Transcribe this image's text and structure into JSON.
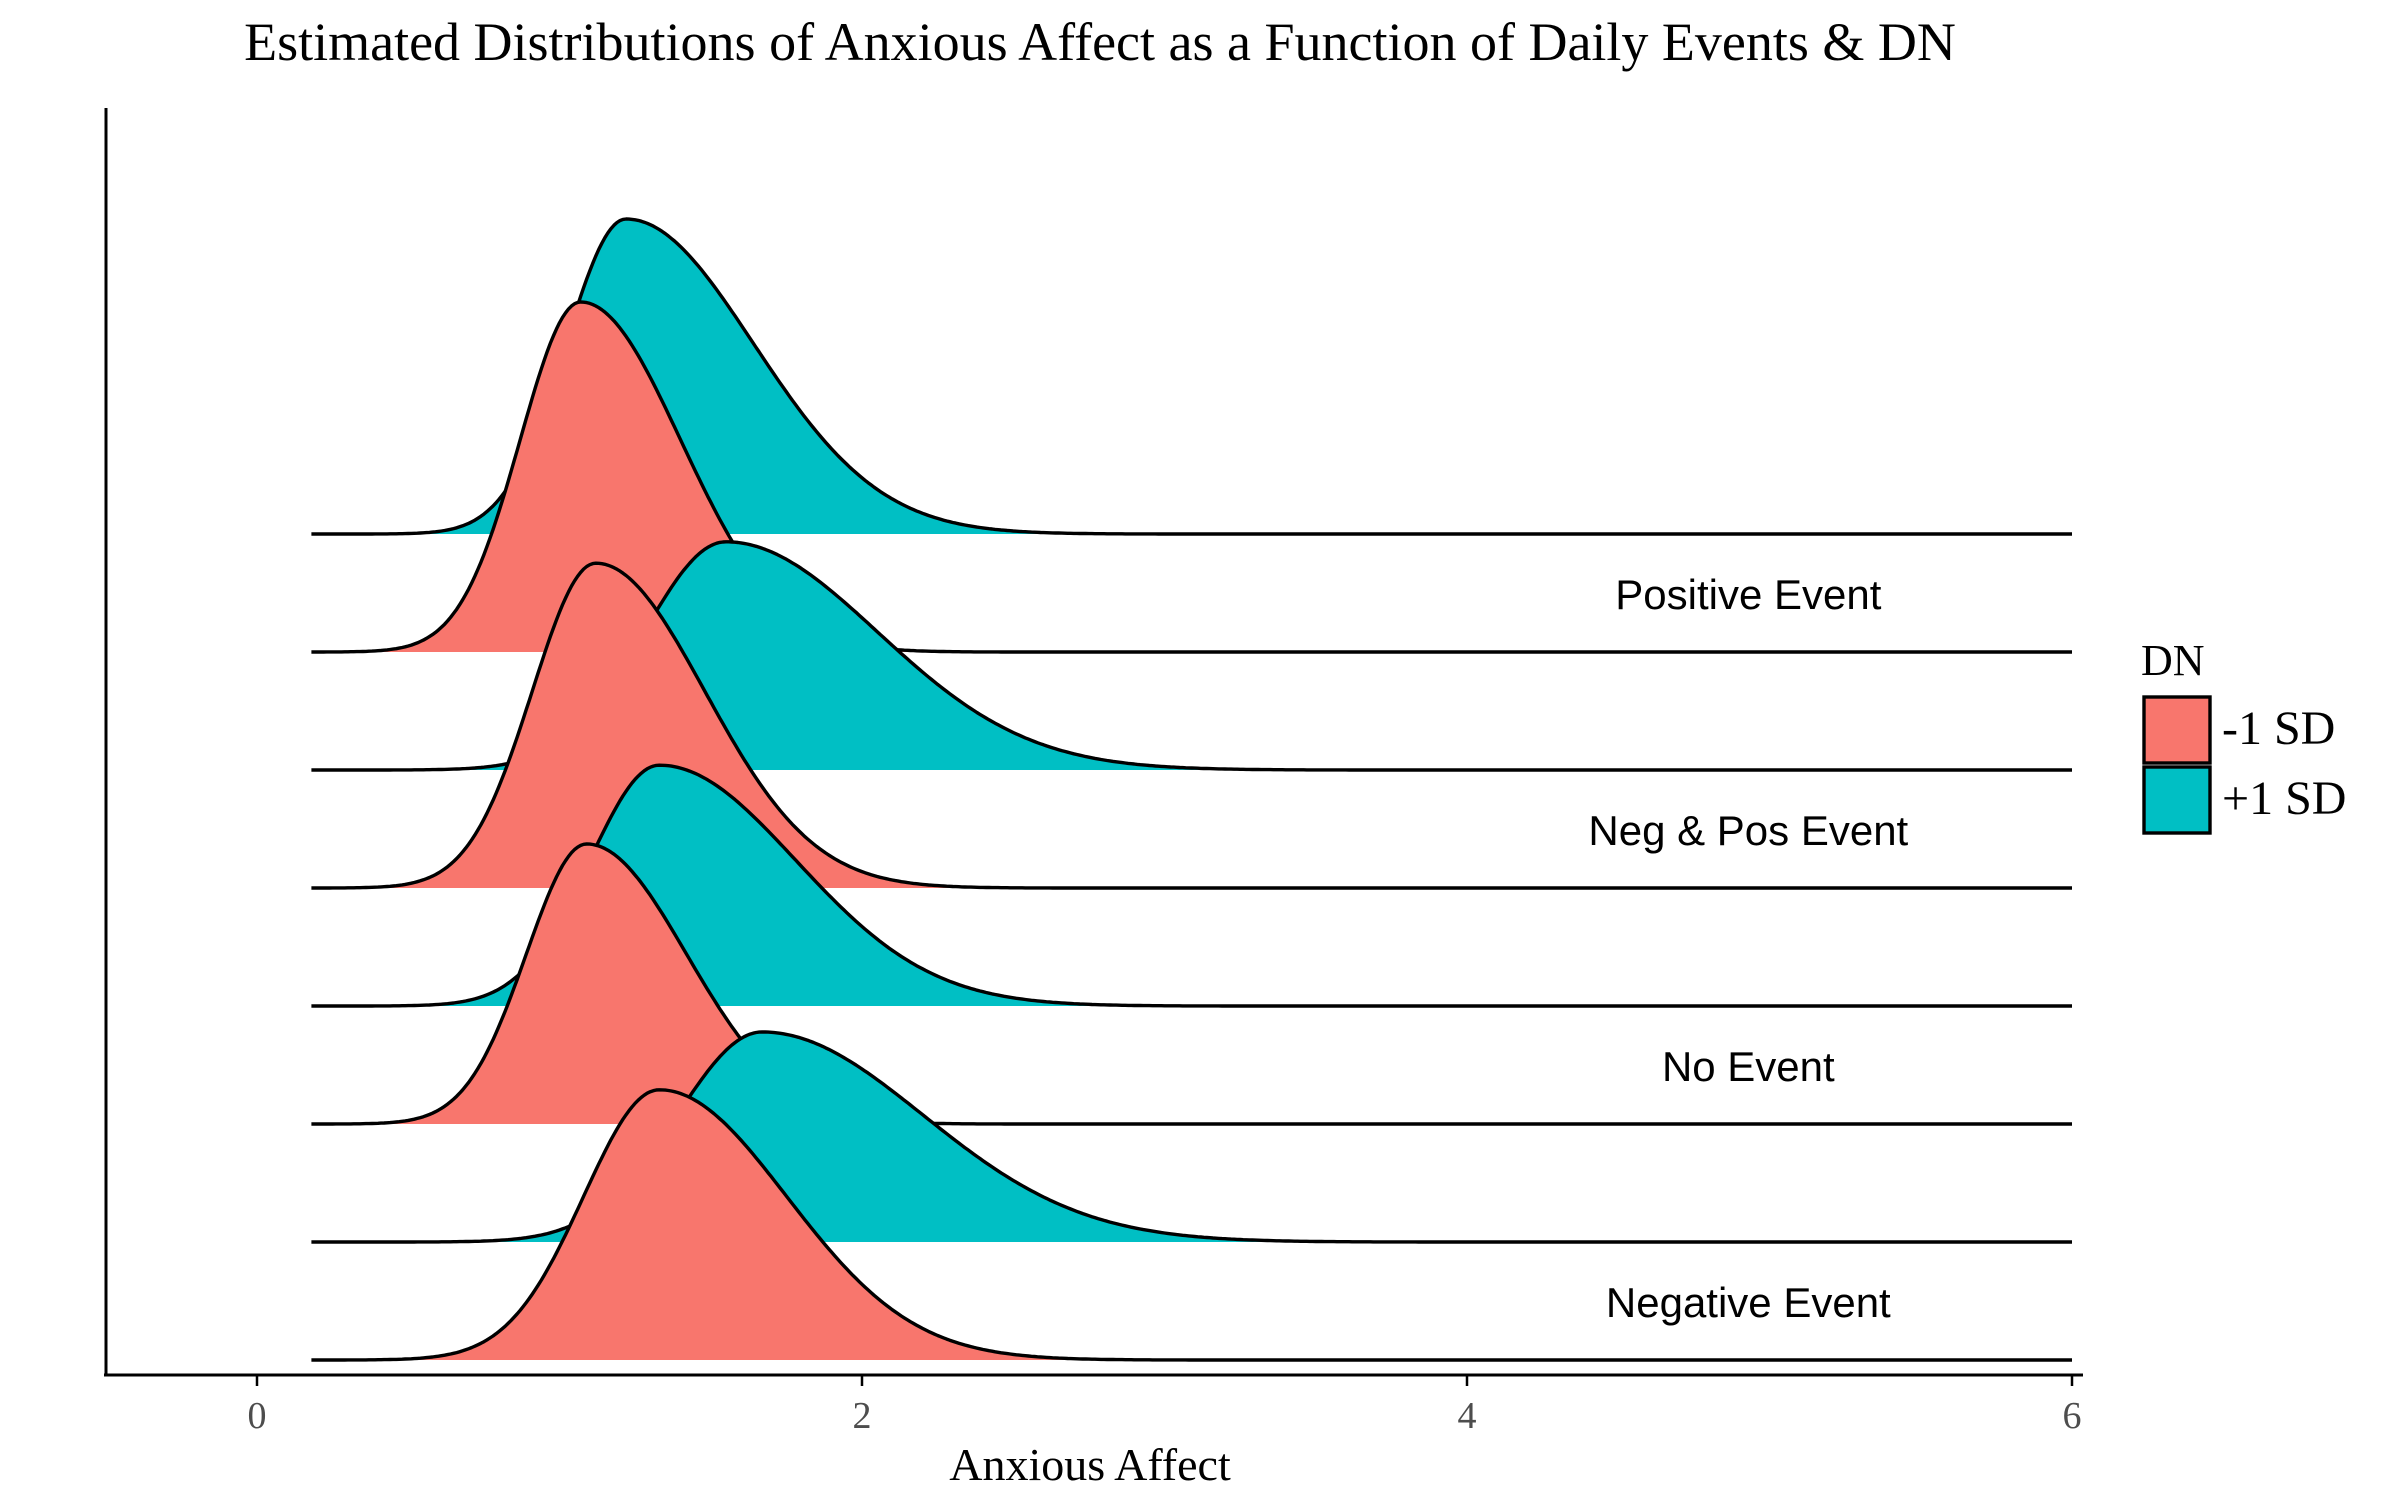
{
  "chart_data": {
    "type": "ridgeline-density",
    "title": "Estimated Distributions of Anxious Affect as a Function of Daily Events & DN",
    "xlabel": "Anxious Affect",
    "ylabel": "",
    "xlim": [
      -0.5,
      6
    ],
    "xticks": [
      0,
      2,
      4,
      6
    ],
    "x_range_drawn": [
      0.18,
      6.0
    ],
    "grid": false,
    "legend": {
      "title": "DN",
      "position": "right",
      "entries": [
        {
          "label": "-1 SD",
          "color": "#F8766D"
        },
        {
          "label": "+1 SD",
          "color": "#00BFC4"
        }
      ]
    },
    "groups": [
      {
        "label": "Positive Event",
        "series": [
          {
            "name": "-1 SD",
            "color": "#F8766D",
            "mode": 1.07,
            "sd_left": 0.2,
            "sd_right": 0.33,
            "peak_height": 2.5
          },
          {
            "name": "+1 SD",
            "color": "#00BFC4",
            "mode": 1.22,
            "sd_left": 0.2,
            "sd_right": 0.42,
            "peak_height": 2.25
          }
        ]
      },
      {
        "label": "Neg & Pos Event",
        "series": [
          {
            "name": "-1 SD",
            "color": "#F8766D",
            "mode": 1.12,
            "sd_left": 0.21,
            "sd_right": 0.36,
            "peak_height": 2.32
          },
          {
            "name": "+1 SD",
            "color": "#00BFC4",
            "mode": 1.55,
            "sd_left": 0.27,
            "sd_right": 0.5,
            "peak_height": 1.63
          }
        ]
      },
      {
        "label": "No Event",
        "series": [
          {
            "name": "-1 SD",
            "color": "#F8766D",
            "mode": 1.09,
            "sd_left": 0.2,
            "sd_right": 0.33,
            "peak_height": 2.0
          },
          {
            "name": "+1 SD",
            "color": "#00BFC4",
            "mode": 1.33,
            "sd_left": 0.23,
            "sd_right": 0.45,
            "peak_height": 1.72
          }
        ]
      },
      {
        "label": "Negative Event",
        "series": [
          {
            "name": "-1 SD",
            "color": "#F8766D",
            "mode": 1.33,
            "sd_left": 0.25,
            "sd_right": 0.42,
            "peak_height": 1.93
          },
          {
            "name": "+1 SD",
            "color": "#00BFC4",
            "mode": 1.67,
            "sd_left": 0.28,
            "sd_right": 0.53,
            "peak_height": 1.5
          }
        ]
      }
    ]
  }
}
